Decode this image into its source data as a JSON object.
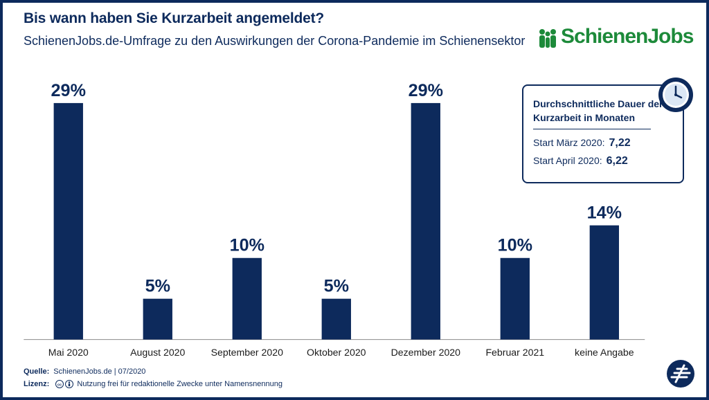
{
  "header": {
    "title": "Bis wann haben Sie Kurzarbeit angemeldet?",
    "subtitle": "SchienenJobs.de-Umfrage zu den Auswirkungen der Corona-Pandemie im Schienensektor",
    "logo_text": "SchienenJobs"
  },
  "colors": {
    "bar": "#0d2a5c",
    "text": "#0d2a5c",
    "logo_green": "#1d8a3a"
  },
  "chart_data": {
    "type": "bar",
    "title": "Bis wann haben Sie Kurzarbeit angemeldet?",
    "categories": [
      "Mai 2020",
      "August 2020",
      "September 2020",
      "Oktober 2020",
      "Dezember 2020",
      "Februar 2021",
      "keine Angabe"
    ],
    "values": [
      29,
      5,
      10,
      5,
      29,
      10,
      14
    ],
    "labels": [
      "29%",
      "5%",
      "10%",
      "5%",
      "29%",
      "10%",
      "14%"
    ],
    "ylim": [
      0,
      29
    ],
    "grid": false,
    "legend": "none"
  },
  "info_box": {
    "title": "Durchschnittliche Dauer der Kurzarbeit in Monaten",
    "rows": [
      {
        "label": "Start März 2020:",
        "value": "7,22"
      },
      {
        "label": "Start April 2020:",
        "value": "6,22"
      }
    ],
    "icon": "clock-icon"
  },
  "footer": {
    "source_label": "Quelle:",
    "source_text": "SchienenJobs.de | 07/2020",
    "license_label": "Lizenz:",
    "license_text": "Nutzung frei für redaktionelle Zwecke unter Namensnennung",
    "license_icons": [
      "cc-icon",
      "by-icon"
    ]
  }
}
